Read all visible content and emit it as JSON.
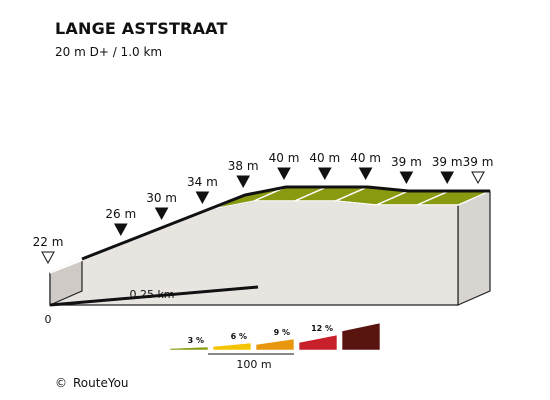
{
  "title": "LANGE ASTSTRAAT",
  "subtitle": "20 m D+ / 1.0 km",
  "credit": {
    "symbol": "©",
    "text": "RouteYou"
  },
  "chart_data": {
    "type": "area",
    "title": "LANGE ASTSTRAAT",
    "xlim": [
      0,
      1.0
    ],
    "ylim": [
      20,
      40
    ],
    "segments": [
      {
        "x0": 0.0,
        "x1": 0.1,
        "y0": 22,
        "y1": 26,
        "color": "#f5c400"
      },
      {
        "x0": 0.1,
        "x1": 0.2,
        "y0": 26,
        "y1": 30,
        "color": "#f5c400"
      },
      {
        "x0": 0.2,
        "x1": 0.3,
        "y0": 30,
        "y1": 34,
        "color": "#f5c400"
      },
      {
        "x0": 0.3,
        "x1": 0.4,
        "y0": 34,
        "y1": 38,
        "color": "#f5c400"
      },
      {
        "x0": 0.4,
        "x1": 0.5,
        "y0": 38,
        "y1": 40,
        "color": "#8a9a10"
      },
      {
        "x0": 0.5,
        "x1": 0.6,
        "y0": 40,
        "y1": 40,
        "color": "#8a9a10"
      },
      {
        "x0": 0.6,
        "x1": 0.7,
        "y0": 40,
        "y1": 40,
        "color": "#8a9a10"
      },
      {
        "x0": 0.7,
        "x1": 0.8,
        "y0": 40,
        "y1": 39,
        "color": "#8a9a10"
      },
      {
        "x0": 0.8,
        "x1": 0.9,
        "y0": 39,
        "y1": 39,
        "color": "#8a9a10"
      },
      {
        "x0": 0.9,
        "x1": 1.0,
        "y0": 39,
        "y1": 39,
        "color": "#8a9a10"
      }
    ],
    "markers": [
      {
        "x": 0.0,
        "label": "22 m",
        "style": "open"
      },
      {
        "x": 0.1,
        "label": "26 m",
        "style": "filled"
      },
      {
        "x": 0.2,
        "label": "30 m",
        "style": "filled"
      },
      {
        "x": 0.3,
        "label": "34 m",
        "style": "filled"
      },
      {
        "x": 0.4,
        "label": "38 m",
        "style": "filled"
      },
      {
        "x": 0.5,
        "label": "40 m",
        "style": "filled"
      },
      {
        "x": 0.6,
        "label": "40 m",
        "style": "filled"
      },
      {
        "x": 0.7,
        "label": "40 m",
        "style": "filled"
      },
      {
        "x": 0.8,
        "label": "39 m",
        "style": "filled"
      },
      {
        "x": 0.9,
        "label": "39 m",
        "style": "filled"
      },
      {
        "x": 1.0,
        "label": "39 m",
        "style": "open"
      }
    ],
    "distance_ticks": [
      {
        "x": 0.0,
        "label": "0"
      },
      {
        "x": 0.25,
        "label": "0.25 km"
      }
    ],
    "gradient_legend": {
      "items": [
        {
          "label": "3 %",
          "color": "#8a9a10"
        },
        {
          "label": "6 %",
          "color": "#f5c400"
        },
        {
          "label": "9 %",
          "color": "#e8960c"
        },
        {
          "label": "12 %",
          "color": "#c8202a"
        },
        {
          "label": "",
          "color": "#5a1410"
        }
      ],
      "scale_label": "100 m"
    }
  }
}
